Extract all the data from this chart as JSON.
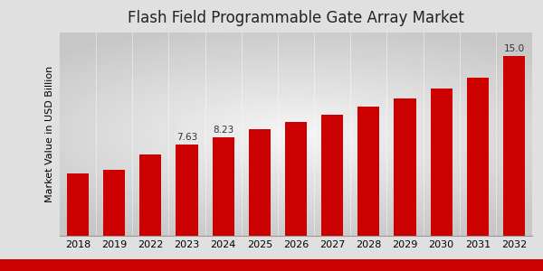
{
  "title": "Flash Field Programmable Gate Array Market",
  "ylabel": "Market Value in USD Billion",
  "categories": [
    "2018",
    "2019",
    "2022",
    "2023",
    "2024",
    "2025",
    "2026",
    "2027",
    "2028",
    "2029",
    "2030",
    "2031",
    "2032"
  ],
  "values": [
    5.2,
    5.5,
    6.8,
    7.63,
    8.23,
    8.9,
    9.5,
    10.1,
    10.8,
    11.5,
    12.3,
    13.2,
    15.0
  ],
  "bar_color": "#CC0000",
  "annotations": {
    "2023": "7.63",
    "2024": "8.23",
    "2032": "15.0"
  },
  "ylim": [
    0,
    17
  ],
  "title_fontsize": 12,
  "tick_fontsize": 8,
  "ylabel_fontsize": 8,
  "bottom_stripe_color": "#CC0000",
  "bg_light": "#f5f5f5",
  "bg_dark": "#d0d0d0"
}
